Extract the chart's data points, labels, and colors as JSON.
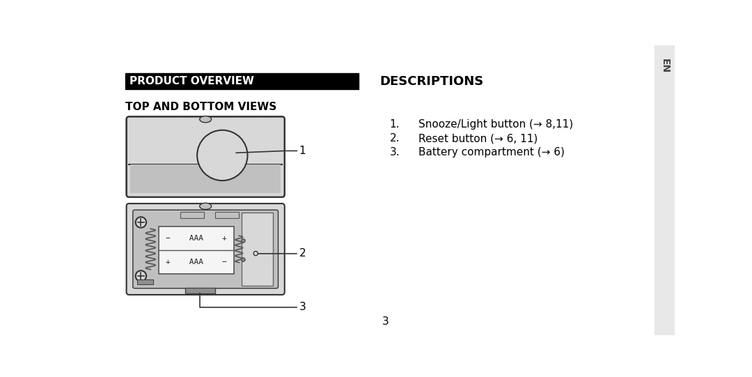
{
  "bg_color": "#ffffff",
  "sidebar_color": "#e8e8e8",
  "sidebar_text": "EN",
  "header_bar_color": "#000000",
  "header_bar_text": "PRODUCT OVERVIEW",
  "header_bar_text_color": "#ffffff",
  "section2_title": "TOP AND BOTTOM VIEWS",
  "desc_title": "DESCRIPTIONS",
  "desc_items": [
    "Snooze/Light button (→ 8,11)",
    "Reset button (→ 6, 11)",
    "Battery compartment (→ 6)"
  ],
  "page_number": "3",
  "device_color_light": "#d8d8d8",
  "device_color_mid": "#c0c0c0",
  "device_color_dark": "#909090",
  "device_color_outline": "#333333",
  "device_color_white": "#f5f5f5"
}
